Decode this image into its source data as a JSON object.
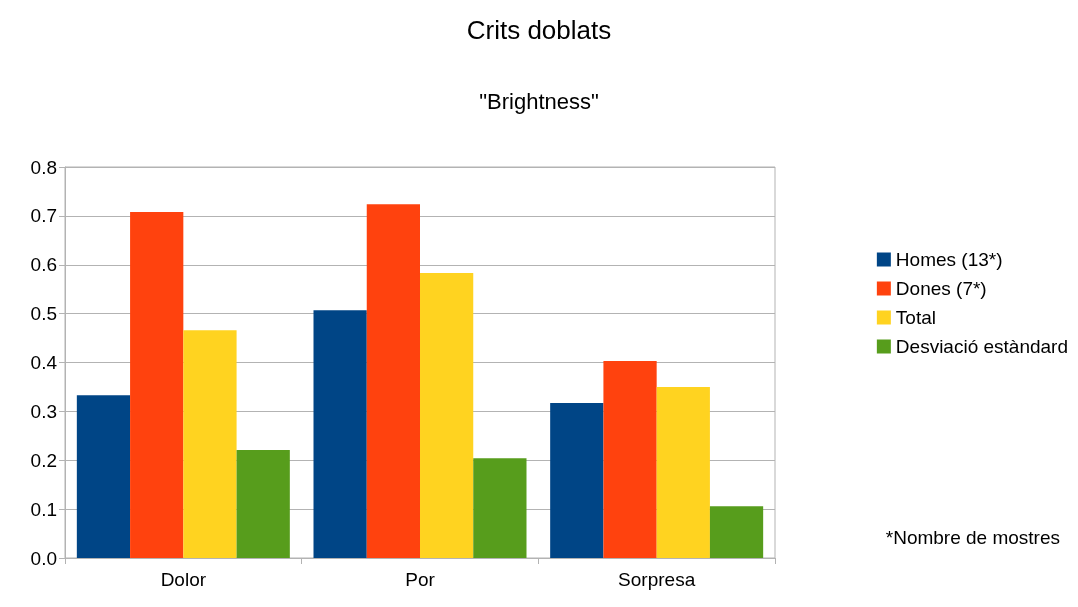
{
  "chart_data": {
    "type": "bar",
    "title": "Crits doblats",
    "subtitle": "\"Brightness\"",
    "categories": [
      "Dolor",
      "Por",
      "Sorpresa"
    ],
    "series": [
      {
        "name": "Homes (13*)",
        "color": "#004586",
        "values": [
          0.333,
          0.507,
          0.317
        ]
      },
      {
        "name": "Dones (7*)",
        "color": "#ff420e",
        "values": [
          0.708,
          0.724,
          0.403
        ]
      },
      {
        "name": "Total",
        "color": "#ffd320",
        "values": [
          0.466,
          0.583,
          0.35
        ]
      },
      {
        "name": "Desviació estàndard",
        "color": "#579d1c",
        "values": [
          0.221,
          0.204,
          0.106
        ]
      }
    ],
    "ylim": [
      0,
      0.8
    ],
    "yticks": [
      {
        "value": 0,
        "label": "0.0"
      },
      0.1,
      0.2,
      0.3,
      0.4,
      0.5,
      0.6,
      0.7,
      0.8
    ],
    "grid": "y",
    "legend": "right",
    "annotations": [
      "*Nombre de mostres"
    ]
  }
}
